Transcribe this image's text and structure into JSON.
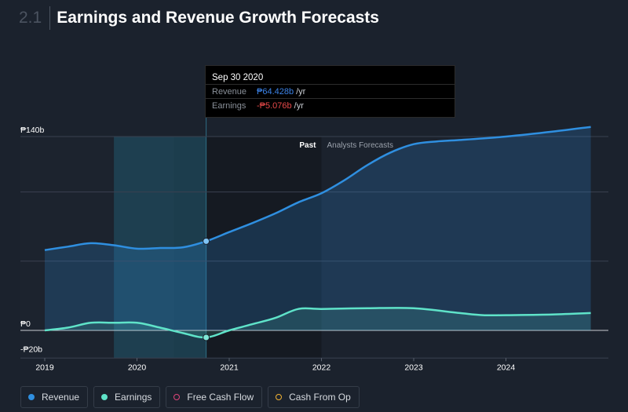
{
  "header": {
    "section_number": "2.1",
    "title": "Earnings and Revenue Growth Forecasts"
  },
  "tooltip": {
    "date": "Sep 30 2020",
    "revenue_label": "Revenue",
    "revenue_value": "₱64.428b",
    "revenue_unit": "/yr",
    "earnings_label": "Earnings",
    "earnings_value": "-₱5.076b",
    "earnings_unit": "/yr"
  },
  "legend": {
    "revenue": "Revenue",
    "earnings": "Earnings",
    "fcf": "Free Cash Flow",
    "cfo": "Cash From Op"
  },
  "colors": {
    "revenue": "#2f8fe0",
    "earnings": "#5fe3c9",
    "fcf": "#e0457a",
    "cfo": "#f2b233",
    "background": "#1b222d"
  },
  "chart_data": {
    "type": "line",
    "y_axis_labels": [
      "₱140b",
      "₱0",
      "-₱20b"
    ],
    "ylim": [
      -20,
      140
    ],
    "x_ticks": [
      "2019",
      "2020",
      "2021",
      "2022",
      "2023",
      "2024"
    ],
    "region_labels": {
      "past": "Past",
      "forecast": "Analysts Forecasts"
    },
    "grid": true,
    "legend_position": "bottom",
    "series": [
      {
        "name": "Revenue",
        "x": [
          2019.0,
          2019.25,
          2019.5,
          2019.75,
          2020.0,
          2020.25,
          2020.5,
          2020.75,
          2021.0,
          2021.25,
          2021.5,
          2021.75,
          2022.0,
          2022.25,
          2022.5,
          2022.75,
          2023.0,
          2023.25,
          2023.5,
          2024.0,
          2024.5,
          2024.92
        ],
        "values": [
          58,
          60.5,
          63,
          61.5,
          59,
          59.5,
          60,
          64.4,
          71,
          77.5,
          84.5,
          92.5,
          99,
          108.5,
          119.5,
          128.5,
          134.5,
          136.5,
          137.5,
          140,
          143.5,
          147
        ]
      },
      {
        "name": "Earnings",
        "x": [
          2019.0,
          2019.25,
          2019.5,
          2019.75,
          2020.0,
          2020.25,
          2020.5,
          2020.75,
          2021.0,
          2021.25,
          2021.5,
          2021.75,
          2022.0,
          2022.5,
          2023.0,
          2023.5,
          2023.75,
          2024.0,
          2024.5,
          2024.92
        ],
        "values": [
          0,
          2,
          5.5,
          5.5,
          5.5,
          2,
          -2,
          -5.1,
          0,
          4.5,
          9,
          15.5,
          15.5,
          16,
          16,
          12.5,
          11,
          11,
          11.5,
          12.5
        ]
      }
    ]
  }
}
